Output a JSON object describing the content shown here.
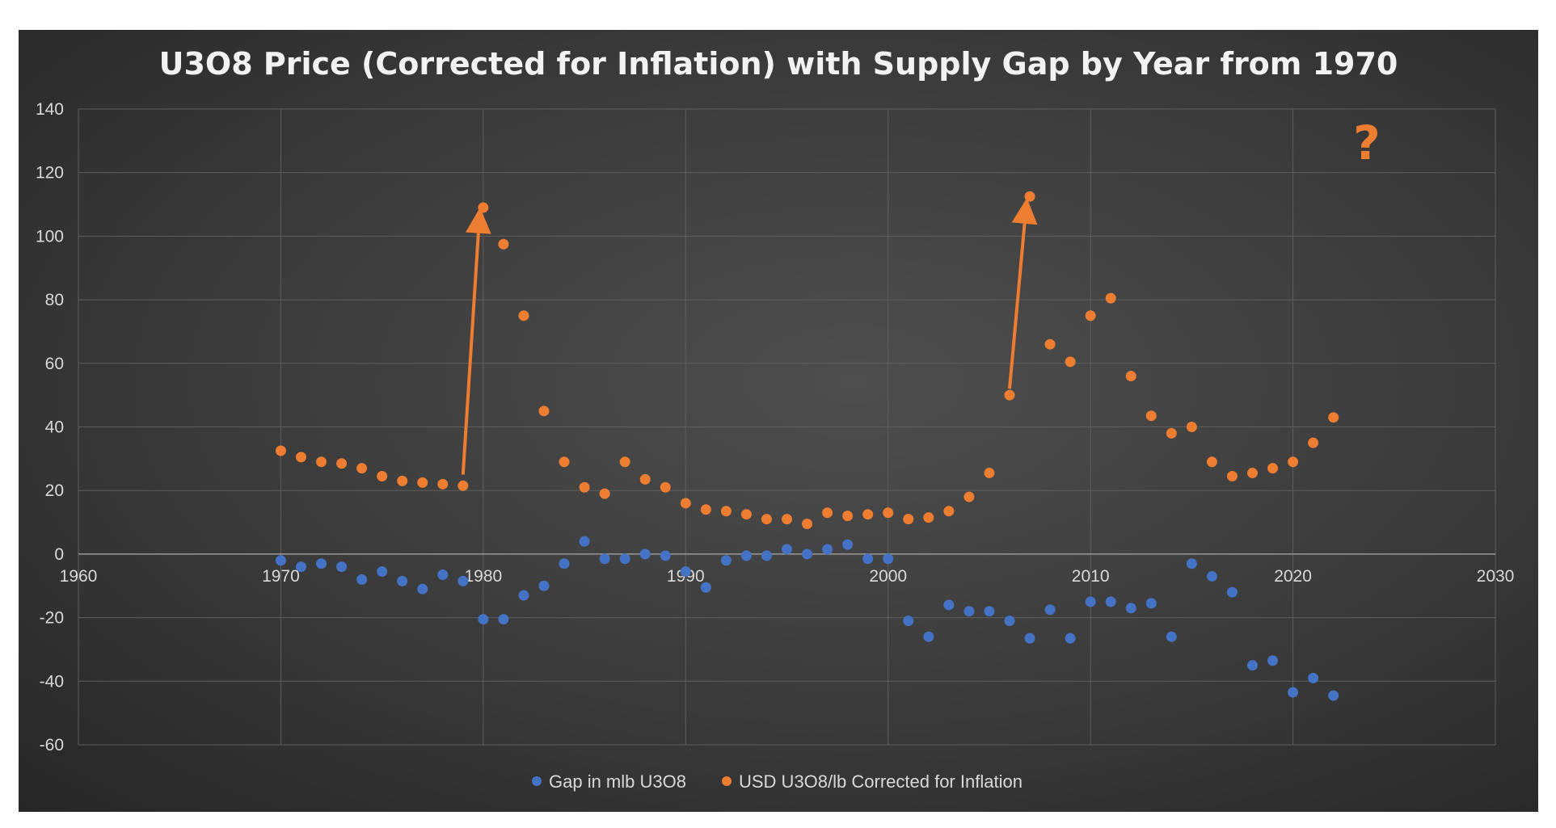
{
  "chart_data": {
    "type": "scatter",
    "title": "U3O8 Price (Corrected for Inflation) with Supply Gap by Year from 1970",
    "xlim": [
      1960,
      2030
    ],
    "ylim": [
      -60,
      140
    ],
    "x_ticks": [
      1960,
      1970,
      1980,
      1990,
      2000,
      2010,
      2020,
      2030
    ],
    "y_ticks": [
      140,
      120,
      100,
      80,
      60,
      40,
      20,
      0,
      -20,
      -40,
      -60
    ],
    "grid": true,
    "legend_position": "bottom",
    "annotation": "?",
    "colors": {
      "gap": "#4472c4",
      "price": "#ed7d31",
      "arrow": "#ed7d31",
      "grid": "#5e5e5e",
      "axis": "#9a9a9a"
    },
    "arrows": [
      {
        "from": [
          1979,
          25
        ],
        "to": [
          1979.8,
          105
        ]
      },
      {
        "from": [
          2006,
          52
        ],
        "to": [
          2006.8,
          108
        ]
      }
    ],
    "series": [
      {
        "name": "Gap in mlb U3O8",
        "color": "#4472c4",
        "points": [
          [
            1970,
            -2
          ],
          [
            1971,
            -4
          ],
          [
            1972,
            -3
          ],
          [
            1973,
            -4
          ],
          [
            1974,
            -8
          ],
          [
            1975,
            -5.5
          ],
          [
            1976,
            -8.5
          ],
          [
            1977,
            -11
          ],
          [
            1978,
            -6.5
          ],
          [
            1979,
            -8.5
          ],
          [
            1980,
            -20.5
          ],
          [
            1981,
            -20.5
          ],
          [
            1982,
            -13
          ],
          [
            1983,
            -10
          ],
          [
            1984,
            -3
          ],
          [
            1985,
            4
          ],
          [
            1986,
            -1.5
          ],
          [
            1987,
            -1.5
          ],
          [
            1988,
            0
          ],
          [
            1989,
            -0.5
          ],
          [
            1990,
            -5.5
          ],
          [
            1991,
            -10.5
          ],
          [
            1992,
            -2
          ],
          [
            1993,
            -0.5
          ],
          [
            1994,
            -0.5
          ],
          [
            1995,
            1.5
          ],
          [
            1996,
            0
          ],
          [
            1997,
            1.5
          ],
          [
            1998,
            3
          ],
          [
            1999,
            -1.5
          ],
          [
            2000,
            -1.5
          ],
          [
            2001,
            -21
          ],
          [
            2002,
            -26
          ],
          [
            2003,
            -16
          ],
          [
            2004,
            -18
          ],
          [
            2005,
            -18
          ],
          [
            2006,
            -21
          ],
          [
            2007,
            -26.5
          ],
          [
            2008,
            -17.5
          ],
          [
            2009,
            -26.5
          ],
          [
            2010,
            -15
          ],
          [
            2011,
            -15
          ],
          [
            2012,
            -17
          ],
          [
            2013,
            -15.5
          ],
          [
            2014,
            -26
          ],
          [
            2015,
            -3
          ],
          [
            2016,
            -7
          ],
          [
            2017,
            -12
          ],
          [
            2018,
            -35
          ],
          [
            2019,
            -33.5
          ],
          [
            2020,
            -43.5
          ],
          [
            2021,
            -39
          ],
          [
            2022,
            -44.5
          ]
        ]
      },
      {
        "name": "USD U3O8/lb Corrected for Inflation",
        "color": "#ed7d31",
        "points": [
          [
            1970,
            32.5
          ],
          [
            1971,
            30.5
          ],
          [
            1972,
            29
          ],
          [
            1973,
            28.5
          ],
          [
            1974,
            27
          ],
          [
            1975,
            24.5
          ],
          [
            1976,
            23
          ],
          [
            1977,
            22.5
          ],
          [
            1978,
            22
          ],
          [
            1979,
            21.5
          ],
          [
            1980,
            109
          ],
          [
            1981,
            97.5
          ],
          [
            1982,
            75
          ],
          [
            1983,
            45
          ],
          [
            1984,
            29
          ],
          [
            1985,
            21
          ],
          [
            1986,
            19
          ],
          [
            1987,
            29
          ],
          [
            1988,
            23.5
          ],
          [
            1989,
            21
          ],
          [
            1990,
            16
          ],
          [
            1991,
            14
          ],
          [
            1992,
            13.5
          ],
          [
            1993,
            12.5
          ],
          [
            1994,
            11
          ],
          [
            1995,
            11
          ],
          [
            1996,
            9.5
          ],
          [
            1997,
            13
          ],
          [
            1998,
            12
          ],
          [
            1999,
            12.5
          ],
          [
            2000,
            13
          ],
          [
            2001,
            11
          ],
          [
            2002,
            11.5
          ],
          [
            2003,
            13.5
          ],
          [
            2004,
            18
          ],
          [
            2005,
            25.5
          ],
          [
            2006,
            50
          ],
          [
            2007,
            112.5
          ],
          [
            2008,
            66
          ],
          [
            2009,
            60.5
          ],
          [
            2010,
            75
          ],
          [
            2011,
            80.5
          ],
          [
            2012,
            56
          ],
          [
            2013,
            43.5
          ],
          [
            2014,
            38
          ],
          [
            2015,
            40
          ],
          [
            2016,
            29
          ],
          [
            2017,
            24.5
          ],
          [
            2018,
            25.5
          ],
          [
            2019,
            27
          ],
          [
            2020,
            29
          ],
          [
            2021,
            35
          ],
          [
            2022,
            43
          ]
        ]
      }
    ]
  }
}
